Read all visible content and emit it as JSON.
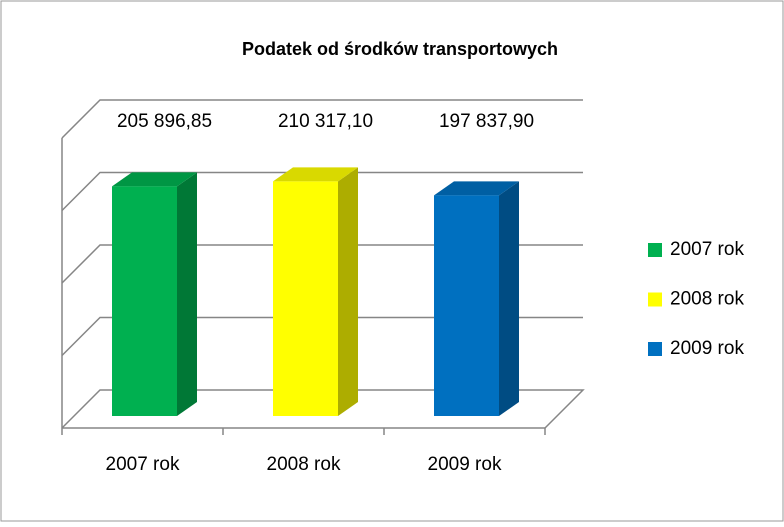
{
  "chart_data": {
    "type": "bar3d",
    "title": "Podatek od środków transportowych",
    "categories": [
      "2007 rok",
      "2008 rok",
      "2009 rok"
    ],
    "values": [
      205896.85,
      210317.1,
      197837.9
    ],
    "value_labels": [
      "205 896,85",
      "210 317,10",
      "197 837,90"
    ],
    "colors": [
      "#00b050",
      "#ffff00",
      "#0070c0"
    ],
    "ylim": [
      0,
      260000
    ],
    "yticks": [
      0,
      65000,
      130000,
      195000,
      260000
    ],
    "grid": true,
    "legend": "right"
  }
}
